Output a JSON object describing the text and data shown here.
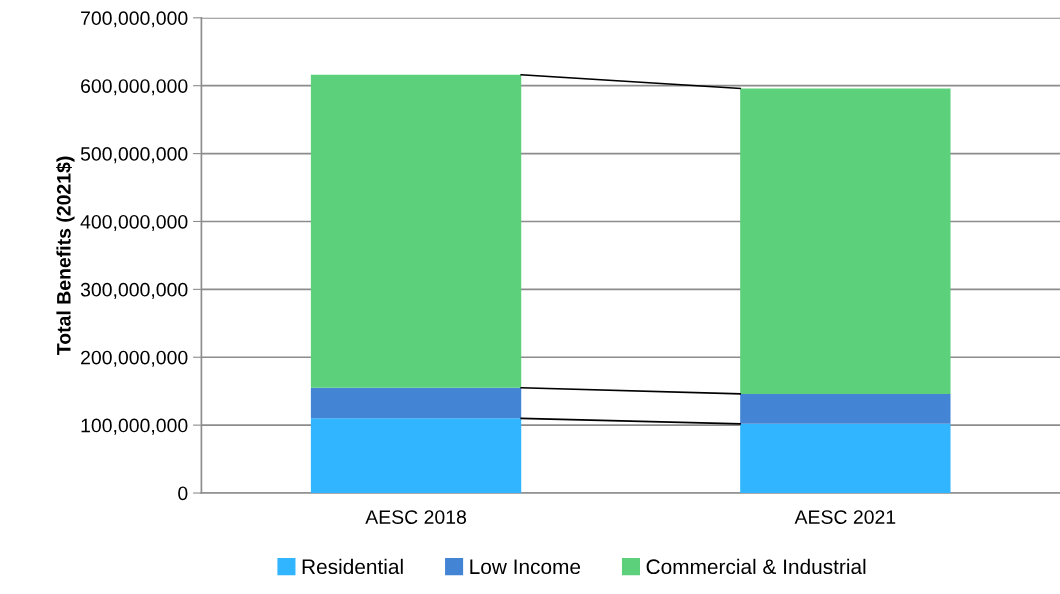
{
  "chart_data": {
    "type": "bar",
    "stacked": true,
    "ylabel": "Total Benefits (2021$)",
    "categories": [
      "AESC 2018",
      "AESC 2021"
    ],
    "series": [
      {
        "name": "Residential",
        "color": "#30b5fe",
        "values": [
          110000000,
          102000000
        ]
      },
      {
        "name": "Low Income",
        "color": "#4484d4",
        "values": [
          45000000,
          44000000
        ]
      },
      {
        "name": "Commercial & Industrial",
        "color": "#5cd07a",
        "values": [
          461000000,
          450000000
        ]
      }
    ],
    "ylim": [
      0,
      700000000
    ],
    "yticks": [
      {
        "value": 0,
        "label": "0"
      },
      {
        "value": 100000000,
        "label": "100,000,000"
      },
      {
        "value": 200000000,
        "label": "200,000,000"
      },
      {
        "value": 300000000,
        "label": "300,000,000"
      },
      {
        "value": 400000000,
        "label": "400,000,000"
      },
      {
        "value": 500000000,
        "label": "500,000,000"
      },
      {
        "value": 600000000,
        "label": "600,000,000"
      },
      {
        "value": 700000000,
        "label": "700,000,000"
      }
    ],
    "grid": "y",
    "legend": "bottom"
  }
}
